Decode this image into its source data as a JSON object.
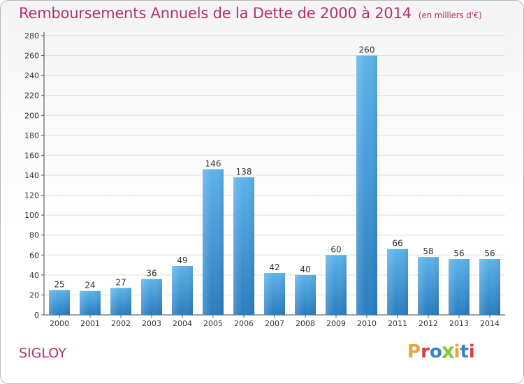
{
  "header": {
    "title": "Remboursements Annuels de la Dette de 2000 à 2014",
    "unit": "(en milliers d'€)"
  },
  "footer": {
    "place": "SIGLOY",
    "brand": "Proxiti",
    "brand_letters": [
      "P",
      "r",
      "o",
      "x",
      "i",
      "t",
      "i"
    ],
    "brand_colors": [
      "#e8a33a",
      "#d93c3c",
      "#3a82c8",
      "#8ec63f",
      "#e8a33a",
      "#3a82c8",
      "#d93c3c"
    ]
  },
  "colors": {
    "bar_light": "#5db3ea",
    "bar_dark": "#2a7dc0",
    "accent": "#b5326a",
    "grid": "#dddddd"
  },
  "chart_data": {
    "type": "bar",
    "title": "Remboursements Annuels de la Dette de 2000 à 2014",
    "subtitle": "(en milliers d'€)",
    "xlabel": "",
    "ylabel": "",
    "categories": [
      "2000",
      "2001",
      "2002",
      "2003",
      "2004",
      "2005",
      "2006",
      "2007",
      "2008",
      "2009",
      "2010",
      "2011",
      "2012",
      "2013",
      "2014"
    ],
    "values": [
      25,
      24,
      27,
      36,
      49,
      146,
      138,
      42,
      40,
      60,
      260,
      66,
      58,
      56,
      56
    ],
    "data_labels": [
      "25",
      "24",
      "27",
      "36",
      "49",
      "146",
      "138",
      "42",
      "40",
      "60",
      "260",
      "66",
      "58",
      "56",
      "56"
    ],
    "ylim": [
      0,
      280
    ],
    "yticks": [
      0,
      20,
      40,
      60,
      80,
      100,
      120,
      140,
      160,
      180,
      200,
      220,
      240,
      260,
      280
    ],
    "grid": true,
    "legend": "none"
  }
}
